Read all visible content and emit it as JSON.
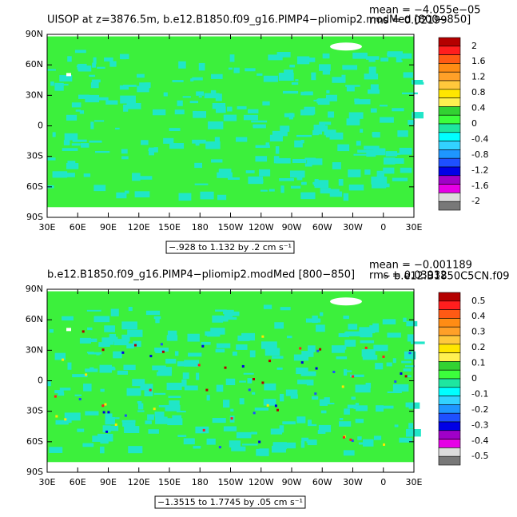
{
  "chart_data": [
    {
      "type": "contour-map",
      "title": "UISOP at z=3876.5m, b.e12.B1850.f09_g16.PIMP4−pliomip2.modMed [800−850]",
      "mean": "mean = −4.055e−05",
      "rms": "rms = 0.02199",
      "info": "−.928 to 1.132 by .2 cm s⁻¹",
      "xlim": [
        30,
        390
      ],
      "ylim": [
        -90,
        90
      ],
      "xticks": [
        {
          "value": 30,
          "label": "30E"
        },
        {
          "value": 60,
          "label": "60E"
        },
        {
          "value": 90,
          "label": "90E"
        },
        {
          "value": 120,
          "label": "120E"
        },
        {
          "value": 150,
          "label": "150E"
        },
        {
          "value": 180,
          "label": "180"
        },
        {
          "value": 210,
          "label": "150W"
        },
        {
          "value": 240,
          "label": "120W"
        },
        {
          "value": 270,
          "label": "90W"
        },
        {
          "value": 300,
          "label": "60W"
        },
        {
          "value": 330,
          "label": "30W"
        },
        {
          "value": 360,
          "label": "0"
        },
        {
          "value": 390,
          "label": "30E"
        }
      ],
      "yticks": [
        {
          "value": -90,
          "label": "90S"
        },
        {
          "value": -60,
          "label": "60S"
        },
        {
          "value": -30,
          "label": "30S"
        },
        0,
        {
          "value": 30,
          "label": "30N"
        },
        {
          "value": 60,
          "label": "60N"
        },
        {
          "value": 90,
          "label": "90N"
        }
      ],
      "colorbar_levels": [
        2,
        1.6,
        1.2,
        0.8,
        0.4,
        0,
        -0.4,
        -0.8,
        -1.2,
        -1.6,
        -2
      ],
      "colorbar_colors": [
        "#b40000",
        "#ff1e1e",
        "#ff5a14",
        "#ff8c14",
        "#ffa028",
        "#ffc83c",
        "#ffe600",
        "#fff050",
        "#32d232",
        "#3cff3c",
        "#1ee6a0",
        "#00ffff",
        "#32d2ff",
        "#1e96ff",
        "#1e50ff",
        "#0000e6",
        "#a000c8",
        "#e600e6",
        "#dcdcdc",
        "#787878"
      ]
    },
    {
      "type": "contour-map",
      "title": "b.e12.B1850.f09_g16.PIMP4−pliomip2.modMed [800−850]",
      "subtitle": "− b.e12.B1850C5CN.f09",
      "mean": "mean = −0.001189",
      "rms": "rms = 0.03932",
      "info": "−1.3515 to 1.7745 by .05 cm s⁻¹",
      "xlim": [
        30,
        390
      ],
      "ylim": [
        -90,
        90
      ],
      "xticks": [
        {
          "value": 30,
          "label": "30E"
        },
        {
          "value": 60,
          "label": "60E"
        },
        {
          "value": 90,
          "label": "90E"
        },
        {
          "value": 120,
          "label": "120E"
        },
        {
          "value": 150,
          "label": "150E"
        },
        {
          "value": 180,
          "label": "180"
        },
        {
          "value": 210,
          "label": "150W"
        },
        {
          "value": 240,
          "label": "120W"
        },
        {
          "value": 270,
          "label": "90W"
        },
        {
          "value": 300,
          "label": "60W"
        },
        {
          "value": 330,
          "label": "30W"
        },
        {
          "value": 360,
          "label": "0"
        },
        {
          "value": 390,
          "label": "30E"
        }
      ],
      "yticks": [
        {
          "value": -90,
          "label": "90S"
        },
        {
          "value": -60,
          "label": "60S"
        },
        {
          "value": -30,
          "label": "30S"
        },
        0,
        {
          "value": 30,
          "label": "30N"
        },
        {
          "value": 60,
          "label": "60N"
        },
        {
          "value": 90,
          "label": "90N"
        }
      ],
      "colorbar_levels": [
        0.5,
        0.4,
        0.3,
        0.2,
        0.1,
        0,
        -0.1,
        -0.2,
        -0.3,
        -0.4,
        -0.5
      ],
      "colorbar_colors": [
        "#b40000",
        "#ff1e1e",
        "#ff5a14",
        "#ff8c14",
        "#ffa028",
        "#ffc83c",
        "#ffe600",
        "#fff050",
        "#32d232",
        "#3cff3c",
        "#1ee6a0",
        "#00ffff",
        "#32d2ff",
        "#1e96ff",
        "#1e50ff",
        "#0000e6",
        "#a000c8",
        "#e600e6",
        "#dcdcdc",
        "#787878"
      ]
    }
  ]
}
